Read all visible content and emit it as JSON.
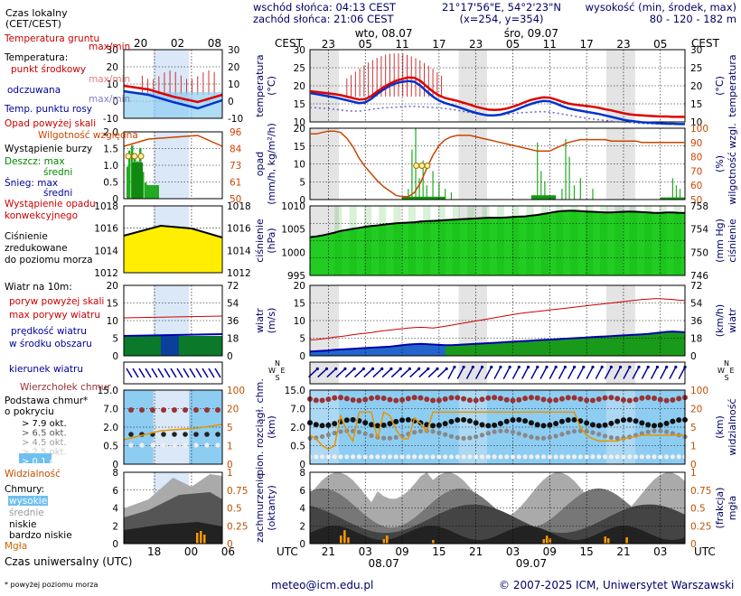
{
  "header": {
    "local_time_label": "Czas lokalny",
    "local_time_zone": "(CET/CEST)",
    "sunrise": "wschód słońca: 04:13 CEST",
    "sunset": "zachód słońca: 21:06 CEST",
    "coordinates": "21°17'56\"E, 54°2'23\"N",
    "grid": "(x=254, y=354)",
    "altitude_label": "wysokość (min, środek, max)",
    "altitude_values": "80 - 120 - 182 m",
    "zone_left": "CEST",
    "zone_right": "CEST",
    "day1": "wto, 08.07",
    "day2": "śro, 09.07",
    "top_hours": [
      "23",
      "05",
      "11",
      "17",
      "23",
      "05",
      "11",
      "17",
      "23",
      "05"
    ],
    "legend_top_hours": [
      "20",
      "02",
      "08"
    ]
  },
  "footer": {
    "utc_label": "UTC",
    "bottom_hours": [
      "21",
      "03",
      "09",
      "15",
      "21",
      "03",
      "09",
      "15",
      "21",
      "03"
    ],
    "date1": "08.07",
    "date2": "09.07",
    "legend_bottom_hours": [
      "18",
      "00",
      "06"
    ],
    "universal_time_label": "Czas uniwersalny (UTC)",
    "note": "* powyżej poziomu morza",
    "email": "meteo@icm.edu.pl",
    "copyright": "© 2007-2025 ICM, Uniwersytet Warszawski"
  },
  "legend": {
    "temp": {
      "ground": "Temperatura gruntu",
      "ground_sub": "max/min",
      "temperature": "Temperatura:",
      "midpoint": "punkt środkowy",
      "midpoint_sub": "max/min",
      "feels": "odczuwana",
      "feels_sub": "max/min",
      "dew": "Temp. punktu rosy",
      "ticks": [
        "30",
        "20",
        "10",
        "0",
        "-10"
      ]
    },
    "precip": {
      "above_scale": "Opad powyżej skali",
      "rh": "Wilgotność względna",
      "storm": "Wystąpienie burzy",
      "rain": "Deszcz: max",
      "rain_mid": "średni",
      "snow": "Śnieg: max",
      "snow_mid": "średni",
      "conv1": "Wystąpienie opadu",
      "conv2": "konwekcyjnego",
      "ticks_left": [
        "2.0",
        "1.5",
        "1.0",
        "0.5",
        "0"
      ],
      "ticks_right": [
        "96",
        "84",
        "73",
        "61",
        "50"
      ]
    },
    "pressure": {
      "l1": "Ciśnienie",
      "l2": "zredukowane",
      "l3": "do poziomu morza",
      "ticks_left": [
        "1018",
        "1016",
        "1014",
        "1012"
      ],
      "ticks_right": [
        "1018",
        "1016",
        "1014",
        "1012"
      ]
    },
    "wind": {
      "title": "Wiatr na 10m:",
      "gust_above": "poryw powyżej skali",
      "gust_max": "max porywy wiatru",
      "speed": "prędkość wiatru",
      "speed2": "w środku obszaru",
      "ticks_left": [
        "20",
        "15",
        "10",
        "5",
        "0"
      ],
      "ticks_right": [
        "72",
        "54",
        "36",
        "18",
        "0"
      ]
    },
    "direction": {
      "label": "kierunek wiatru"
    },
    "cloud_base": {
      "cumulonimbus": "Wierzchołek chmur",
      "base1": "Podstawa chmur*",
      "base2": "o pokryciu",
      "okt": [
        "> 7.9 okt.",
        "> 6.5 okt.",
        "> 4.5 okt.",
        "> 2.5 okt.",
        "> 0.1 okt."
      ],
      "visibility": "Widzialność",
      "ticks_left": [
        "15.0",
        "7.0",
        "2.0",
        "0.5",
        "0"
      ],
      "ticks_right": [
        "100",
        "20",
        "5",
        "1",
        "0"
      ]
    },
    "clouds": {
      "title": "Chmury:",
      "high": "wysokie",
      "mid": "średnie",
      "low": "niskie",
      "very_low": "bardzo niskie",
      "fog": "Mgła",
      "ticks_left": [
        "8",
        "6",
        "4",
        "2",
        "0"
      ],
      "ticks_right": [
        "1",
        "0.75",
        "0.5",
        "0.25",
        "0"
      ]
    }
  },
  "panels": {
    "temperature": {
      "label1": "temperatura",
      "label2": "(°C)",
      "right1": "(°C)",
      "ticks": [
        "30",
        "25",
        "20",
        "15",
        "10"
      ]
    },
    "precip": {
      "label1": "opad",
      "label2": "(mm/h, kg/m²/h)",
      "right1": "(%)",
      "right2": "wilgotność wzgl.",
      "ticks_left": [
        "20",
        "15",
        "10",
        "5",
        "0"
      ],
      "ticks_right": [
        "100",
        "90",
        "80",
        "70",
        "60",
        "50"
      ]
    },
    "pressure": {
      "label1": "ciśnienie",
      "label2": "(hPa)",
      "right1": "(mm Hg)",
      "right2": "ciśnienie",
      "ticks_left": [
        "1010",
        "1005",
        "1000",
        "995"
      ],
      "ticks_right": [
        "758",
        "754",
        "750",
        "746"
      ]
    },
    "wind": {
      "label1": "wiatr",
      "label2": "(m/s)",
      "right1": "(km/h)",
      "right2": "wiatr",
      "ticks_left": [
        "20",
        "15",
        "10",
        "5",
        "0"
      ],
      "ticks_right": [
        "72",
        "54",
        "36",
        "18",
        "0"
      ]
    },
    "direction": {
      "compass": [
        "N",
        "W",
        "E",
        "S"
      ]
    },
    "cloud_base": {
      "label1": "pion. rozciągł. chm.",
      "label2": "(km)",
      "right1": "(km)",
      "right2": "widzialność",
      "ticks_left": [
        "15.0",
        "7.0",
        "2.0",
        "0.5",
        "0"
      ],
      "ticks_right": [
        "100",
        "20",
        "5",
        "1",
        "0"
      ]
    },
    "clouds": {
      "label1": "zachmurzenie",
      "label2": "(oktanty)",
      "right1": "(frakcja)",
      "right2": "mgła",
      "ticks_left": [
        "8",
        "6",
        "4",
        "2",
        "0"
      ],
      "ticks_right": [
        "1",
        "0.75",
        "0.5",
        "0.25",
        "0"
      ]
    }
  },
  "colors": {
    "temp_mid": "#dd0000",
    "temp_feels": "#0033cc",
    "dew": "#6666cc",
    "rh": "#cc4400",
    "rain": "#22aa22",
    "pressure_fill": "#22cc22",
    "wind_fill": "#2266cc",
    "cb": "#993333",
    "visibility": "#e69500",
    "night": "#dcdcdc"
  },
  "chart_data": {
    "type": "line",
    "x_hours_utc": [
      18,
      19,
      20,
      21,
      22,
      23,
      24,
      25,
      26,
      27,
      28,
      29,
      30,
      31,
      32,
      33,
      34,
      35,
      36,
      37,
      38,
      39,
      40,
      41,
      42,
      43,
      44,
      45,
      46,
      47,
      48,
      49,
      50,
      51,
      52,
      53,
      54,
      55,
      56,
      57,
      58,
      59,
      60,
      61,
      62,
      63,
      64,
      65,
      66,
      67,
      68,
      69,
      70,
      71,
      72,
      73,
      74,
      75,
      76,
      77,
      78,
      79
    ],
    "series": [
      {
        "name": "punkt środkowy",
        "values": [
          18.5,
          18.3,
          18.1,
          17.9,
          17.7,
          17.4,
          17.0,
          16.6,
          16.2,
          16.3,
          17.2,
          18.5,
          19.6,
          20.6,
          21.4,
          21.9,
          22.3,
          22.2,
          21.3,
          19.8,
          18.4,
          17.3,
          16.6,
          16.2,
          15.8,
          15.3,
          14.8,
          14.2,
          13.8,
          13.4,
          13.3,
          13.4,
          13.7,
          14.2,
          14.8,
          15.5,
          16.1,
          16.5,
          16.8,
          16.7,
          16.2,
          15.6,
          15.1,
          14.8,
          14.6,
          14.4,
          14.2,
          13.9,
          13.5,
          13.2,
          12.8,
          12.4,
          12.1,
          11.9,
          11.8,
          11.7,
          11.6,
          11.5,
          11.5,
          11.4,
          11.4,
          11.4
        ]
      },
      {
        "name": "odczuwana",
        "values": [
          18.0,
          17.7,
          17.4,
          17.1,
          16.8,
          16.4,
          16.0,
          15.6,
          15.2,
          15.4,
          16.4,
          17.8,
          19.0,
          20.0,
          20.7,
          21.1,
          21.3,
          21.1,
          20.0,
          18.4,
          17.0,
          15.9,
          15.2,
          14.7,
          14.2,
          13.6,
          13.0,
          12.5,
          12.1,
          11.8,
          11.8,
          12.0,
          12.5,
          13.0,
          13.7,
          14.4,
          15.0,
          15.5,
          15.8,
          15.7,
          15.1,
          14.4,
          13.8,
          13.4,
          13.1,
          12.8,
          12.5,
          12.2,
          11.8,
          11.4,
          11.0,
          10.6,
          10.3,
          10.1,
          9.9,
          9.8,
          9.7,
          9.6,
          9.5,
          9.5,
          9.4,
          9.4
        ]
      },
      {
        "name": "Temp. punktu rosy",
        "values": [
          14.0,
          13.9,
          13.8,
          13.7,
          13.5,
          13.3,
          13.1,
          13.0,
          13.0,
          13.2,
          13.5,
          13.7,
          13.9,
          14.0,
          14.1,
          14.2,
          14.3,
          14.3,
          14.2,
          14.1,
          14.0,
          13.9,
          13.7,
          13.5,
          13.2,
          12.9,
          12.6,
          12.3,
          12.0,
          11.9,
          11.9,
          12.0,
          12.1,
          12.3,
          12.5,
          12.6,
          12.7,
          12.8,
          12.8,
          12.7,
          12.5,
          12.2,
          11.9,
          11.6,
          11.3,
          11.0,
          10.8,
          10.6,
          10.4,
          10.2,
          10.0,
          9.9,
          9.8,
          9.7,
          9.6,
          9.5,
          9.5,
          9.4,
          9.4,
          9.3,
          9.3,
          9.3
        ]
      },
      {
        "name": "Wilgotność względna",
        "values": [
          96,
          96,
          97,
          98,
          98,
          97,
          93,
          87,
          79,
          73,
          68,
          63,
          59,
          56,
          53,
          52,
          52,
          55,
          62,
          72,
          81,
          88,
          92,
          94,
          95,
          95,
          95,
          94,
          93,
          92,
          91,
          90,
          89,
          88,
          87,
          86,
          85,
          84,
          84,
          84,
          86,
          88,
          90,
          91,
          92,
          92,
          92,
          92,
          92,
          91,
          91,
          91,
          91,
          91,
          90,
          90,
          90,
          90,
          90,
          90,
          90,
          90
        ]
      },
      {
        "name": "ciśnienie",
        "values": [
          1001.0,
          1001.2,
          1001.5,
          1001.9,
          1002.3,
          1002.8,
          1003.1,
          1003.4,
          1003.7,
          1004.0,
          1004.2,
          1004.4,
          1004.6,
          1004.8,
          1005.0,
          1005.1,
          1005.2,
          1005.3,
          1005.5,
          1005.6,
          1005.7,
          1005.8,
          1005.9,
          1006.0,
          1006.1,
          1006.2,
          1006.3,
          1006.4,
          1006.5,
          1006.6,
          1006.6,
          1006.6,
          1006.7,
          1006.8,
          1006.9,
          1007.0,
          1007.2,
          1007.4,
          1007.7,
          1008.0,
          1008.3,
          1008.5,
          1008.6,
          1008.6,
          1008.5,
          1008.4,
          1008.3,
          1008.2,
          1008.1,
          1008.1,
          1008.2,
          1008.3,
          1008.4,
          1008.3,
          1008.2,
          1008.1,
          1008.0,
          1008.0,
          1008.1,
          1008.1,
          1008.0,
          1008.0
        ]
      },
      {
        "name": "prędkość wiatru",
        "values": [
          1.2,
          1.3,
          1.4,
          1.5,
          1.7,
          1.8,
          1.9,
          2.0,
          2.1,
          2.2,
          2.3,
          2.4,
          2.5,
          2.6,
          2.8,
          3.0,
          3.2,
          3.3,
          3.4,
          3.3,
          3.2,
          3.1,
          3.0,
          3.0,
          3.1,
          3.2,
          3.3,
          3.4,
          3.5,
          3.6,
          3.7,
          3.8,
          3.9,
          4.0,
          4.1,
          4.2,
          4.3,
          4.4,
          4.5,
          4.6,
          4.7,
          4.8,
          4.9,
          5.0,
          5.1,
          5.2,
          5.3,
          5.4,
          5.5,
          5.6,
          5.7,
          5.8,
          5.9,
          6.0,
          6.1,
          6.2,
          6.4,
          6.6,
          6.8,
          6.9,
          6.8,
          6.7
        ]
      },
      {
        "name": "max porywy wiatru",
        "values": [
          4.5,
          4.6,
          4.8,
          5.0,
          5.3,
          5.5,
          5.7,
          6.0,
          6.2,
          6.4,
          6.6,
          6.9,
          7.1,
          7.3,
          7.5,
          7.7,
          7.9,
          8.0,
          8.1,
          8.0,
          7.9,
          8.1,
          8.4,
          8.7,
          9.0,
          9.3,
          9.6,
          9.9,
          10.2,
          10.5,
          10.8,
          11.1,
          11.4,
          11.7,
          12.0,
          12.2,
          12.4,
          12.6,
          12.8,
          13.0,
          13.2,
          13.4,
          13.6,
          13.8,
          14.0,
          14.2,
          14.4,
          14.6,
          14.8,
          15.0,
          15.2,
          15.4,
          15.6,
          15.8,
          16.0,
          16.1,
          16.2,
          16.2,
          16.1,
          16.0,
          15.8,
          15.7
        ]
      },
      {
        "name": "Widzialność",
        "values": [
          2.5,
          2.2,
          1.6,
          1.3,
          1.6,
          4.2,
          2.8,
          2.0,
          4.5,
          4.5,
          4.5,
          2.2,
          4.5,
          4.2,
          3.0,
          2.2,
          2.2,
          4.0,
          3.5,
          2.8,
          4.5,
          4.5,
          4.5,
          4.5,
          4.5,
          4.5,
          4.5,
          4.5,
          4.5,
          4.5,
          4.5,
          4.5,
          4.5,
          4.5,
          4.5,
          4.5,
          4.5,
          4.5,
          4.5,
          4.5,
          4.5,
          4.5,
          4.5,
          4.5,
          3.2,
          2.5,
          2.2,
          2.0,
          2.0,
          2.0,
          2.0,
          2.2,
          2.3,
          2.4,
          2.5,
          2.5,
          2.5,
          2.5,
          2.5,
          2.5,
          2.5,
          2.5
        ]
      }
    ],
    "ylabels": {
      "temperature": "temperatura (°C)",
      "precip": "opad (mm/h, kg/m²/h)",
      "pressure": "ciśnienie (hPa)",
      "wind": "wiatr (m/s)",
      "cloud_base": "pion. rozciągł. chm. (km)",
      "clouds": "zachmurzenie (oktanty)"
    },
    "ylim": {
      "temperature": [
        10,
        30
      ],
      "precip": [
        0,
        20
      ],
      "pressure": [
        990,
        1010
      ],
      "wind": [
        0,
        20
      ],
      "clouds": [
        0,
        8
      ]
    }
  }
}
